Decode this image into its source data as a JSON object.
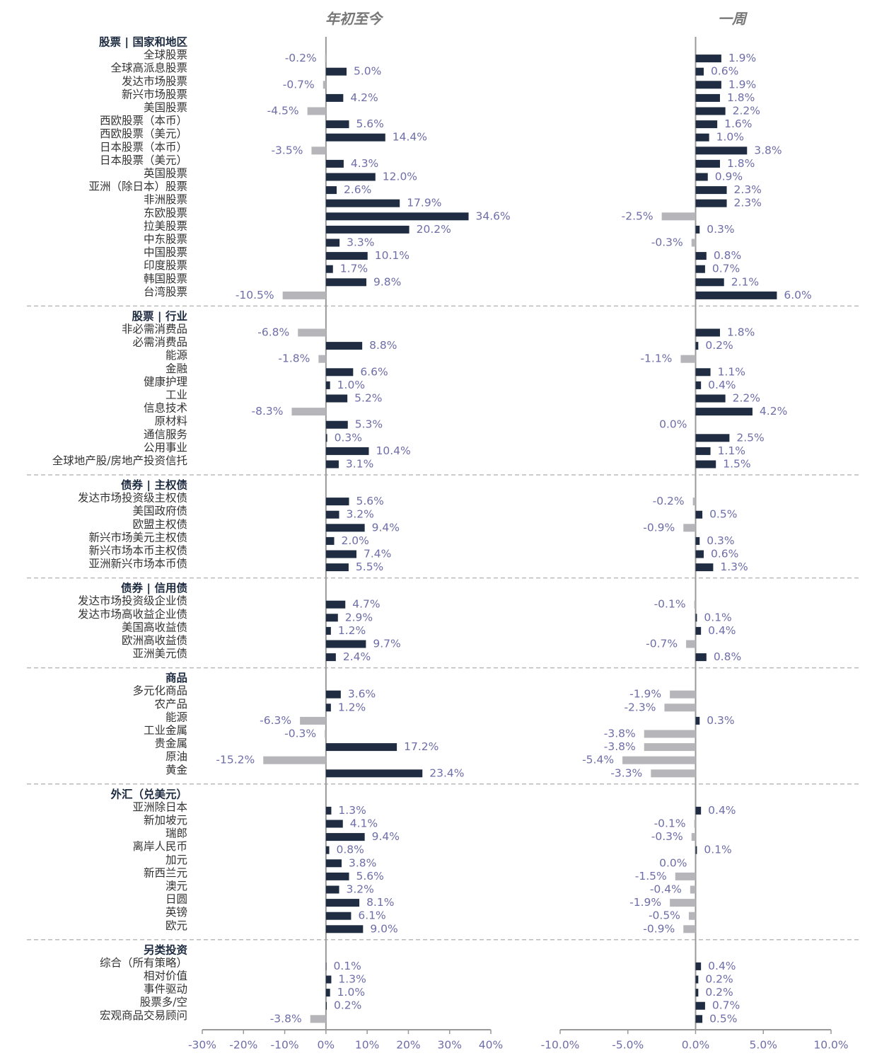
{
  "chart_data": {
    "type": "bar",
    "panels": [
      {
        "title": "年初至今",
        "xlim": [
          -30,
          40
        ],
        "xticks": [
          {
            "value": -30,
            "label": "-30%"
          },
          {
            "value": -20,
            "label": "-20%"
          },
          {
            "value": -10,
            "label": "-10%"
          },
          {
            "value": 0,
            "label": "0%"
          },
          {
            "value": 10,
            "label": "10%"
          },
          {
            "value": 20,
            "label": "20%"
          },
          {
            "value": 30,
            "label": "30%"
          },
          {
            "value": 40,
            "label": "40%"
          }
        ]
      },
      {
        "title": "一周",
        "xlim": [
          -10,
          10
        ],
        "xticks": [
          {
            "value": -10,
            "label": "-10.0%"
          },
          {
            "value": -5,
            "label": "-5.0%"
          },
          {
            "value": 0,
            "label": "0.0%"
          },
          {
            "value": 5,
            "label": "5.0%"
          },
          {
            "value": 10,
            "label": "10.0%"
          }
        ]
      }
    ],
    "colors": {
      "positive": "#1f2c42",
      "negative": "#b5b5ba"
    },
    "groups": [
      {
        "name": "股票 | 国家和地区",
        "categories": [
          "全球股票",
          "全球高派息股票",
          "发达市场股票",
          "新兴市场股票",
          "美国股票",
          "西欧股票（本币）",
          "西欧股票（美元）",
          "日本股票（本币）",
          "日本股票（美元）",
          "英国股票",
          "亚洲（除日本）股票",
          "非洲股票",
          "东欧股票",
          "拉美股票",
          "中东股票",
          "中国股票",
          "印度股票",
          "韩国股票",
          "台湾股票"
        ],
        "series": [
          {
            "values": [
              -0.2,
              5.0,
              -0.7,
              4.2,
              -4.5,
              5.6,
              14.4,
              -3.5,
              4.3,
              12.0,
              2.6,
              17.9,
              34.6,
              20.2,
              3.3,
              10.1,
              1.7,
              9.8,
              -10.5
            ],
            "value_labels": [
              "-0.2%",
              "5.0%",
              "-0.7%",
              "4.2%",
              "-4.5%",
              "5.6%",
              "14.4%",
              "-3.5%",
              "4.3%",
              "12.0%",
              "2.6%",
              "17.9%",
              "34.6%",
              "20.2%",
              "3.3%",
              "10.1%",
              "1.7%",
              "9.8%",
              "-10.5%"
            ]
          },
          {
            "values": [
              1.9,
              0.6,
              1.9,
              1.8,
              2.2,
              1.6,
              1.0,
              3.8,
              1.8,
              0.9,
              2.3,
              2.3,
              -2.5,
              0.3,
              -0.3,
              0.8,
              0.7,
              2.1,
              6.0
            ],
            "value_labels": [
              "1.9%",
              "0.6%",
              "1.9%",
              "1.8%",
              "2.2%",
              "1.6%",
              "1.0%",
              "3.8%",
              "1.8%",
              "0.9%",
              "2.3%",
              "2.3%",
              "-2.5%",
              "0.3%",
              "-0.3%",
              "0.8%",
              "0.7%",
              "2.1%",
              "6.0%"
            ]
          }
        ]
      },
      {
        "name": "股票 | 行业",
        "categories": [
          "非必需消费品",
          "必需消费品",
          "能源",
          "金融",
          "健康护理",
          "工业",
          "信息技术",
          "原材料",
          "通信服务",
          "公用事业",
          "全球地产股/房地产投资信托"
        ],
        "series": [
          {
            "values": [
              -6.8,
              8.8,
              -1.8,
              6.6,
              1.0,
              5.2,
              -8.3,
              5.3,
              0.3,
              10.4,
              3.1
            ],
            "value_labels": [
              "-6.8%",
              "8.8%",
              "-1.8%",
              "6.6%",
              "1.0%",
              "5.2%",
              "-8.3%",
              "5.3%",
              "0.3%",
              "10.4%",
              "3.1%"
            ]
          },
          {
            "values": [
              1.8,
              0.2,
              -1.1,
              1.1,
              0.4,
              2.2,
              4.2,
              0.0,
              2.5,
              1.1,
              1.5
            ],
            "value_labels": [
              "1.8%",
              "0.2%",
              "-1.1%",
              "1.1%",
              "0.4%",
              "2.2%",
              "4.2%",
              "0.0%",
              "2.5%",
              "1.1%",
              "1.5%"
            ]
          }
        ]
      },
      {
        "name": "债券 | 主权债",
        "categories": [
          "发达市场投资级主权债",
          "美国政府债",
          "欧盟主权债",
          "新兴市场美元主权债",
          "新兴市场本币主权债",
          "亚洲新兴市场本币债"
        ],
        "series": [
          {
            "values": [
              5.6,
              3.2,
              9.4,
              2.0,
              7.4,
              5.5
            ],
            "value_labels": [
              "5.6%",
              "3.2%",
              "9.4%",
              "2.0%",
              "7.4%",
              "5.5%"
            ]
          },
          {
            "values": [
              -0.2,
              0.5,
              -0.9,
              0.3,
              0.6,
              1.3
            ],
            "value_labels": [
              "-0.2%",
              "0.5%",
              "-0.9%",
              "0.3%",
              "0.6%",
              "1.3%"
            ]
          }
        ]
      },
      {
        "name": "债券 | 信用债",
        "categories": [
          "发达市场投资级企业债",
          "发达市场高收益企业债",
          "美国高收益债",
          "欧洲高收益债",
          "亚洲美元债"
        ],
        "series": [
          {
            "values": [
              4.7,
              2.9,
              1.2,
              9.7,
              2.4
            ],
            "value_labels": [
              "4.7%",
              "2.9%",
              "1.2%",
              "9.7%",
              "2.4%"
            ]
          },
          {
            "values": [
              -0.1,
              0.1,
              0.4,
              -0.7,
              0.8
            ],
            "value_labels": [
              "-0.1%",
              "0.1%",
              "0.4%",
              "-0.7%",
              "0.8%"
            ]
          }
        ]
      },
      {
        "name": "商品",
        "categories": [
          "多元化商品",
          "农产品",
          "能源",
          "工业金属",
          "贵金属",
          "原油",
          "黄金"
        ],
        "series": [
          {
            "values": [
              3.6,
              1.2,
              -6.3,
              -0.3,
              17.2,
              -15.2,
              23.4
            ],
            "value_labels": [
              "3.6%",
              "1.2%",
              "-6.3%",
              "-0.3%",
              "17.2%",
              "-15.2%",
              "23.4%"
            ]
          },
          {
            "values": [
              -1.9,
              -2.3,
              0.3,
              -3.8,
              -3.8,
              -5.4,
              -3.3
            ],
            "value_labels": [
              "-1.9%",
              "-2.3%",
              "0.3%",
              "-3.8%",
              "-3.8%",
              "-5.4%",
              "-3.3%"
            ]
          }
        ]
      },
      {
        "name": "外汇（兑美元）",
        "categories": [
          "亚洲除日本",
          "新加坡元",
          "瑞郎",
          "离岸人民币",
          "加元",
          "新西兰元",
          "澳元",
          "日圆",
          "英镑",
          "欧元"
        ],
        "series": [
          {
            "values": [
              1.3,
              4.1,
              9.4,
              0.8,
              3.8,
              5.6,
              3.2,
              8.1,
              6.1,
              9.0
            ],
            "value_labels": [
              "1.3%",
              "4.1%",
              "9.4%",
              "0.8%",
              "3.8%",
              "5.6%",
              "3.2%",
              "8.1%",
              "6.1%",
              "9.0%"
            ]
          },
          {
            "values": [
              0.4,
              -0.1,
              -0.3,
              0.1,
              0.0,
              -1.5,
              -0.4,
              -1.9,
              -0.5,
              -0.9
            ],
            "value_labels": [
              "0.4%",
              "-0.1%",
              "-0.3%",
              "0.1%",
              "0.0%",
              "-1.5%",
              "-0.4%",
              "-1.9%",
              "-0.5%",
              "-0.9%"
            ]
          }
        ]
      },
      {
        "name": "另类投资",
        "categories": [
          "综合（所有策略）",
          "相对价值",
          "事件驱动",
          "股票多/空",
          "宏观商品交易顾问"
        ],
        "series": [
          {
            "values": [
              0.1,
              1.3,
              1.0,
              0.2,
              -3.8
            ],
            "value_labels": [
              "0.1%",
              "1.3%",
              "1.0%",
              "0.2%",
              "-3.8%"
            ]
          },
          {
            "values": [
              0.4,
              0.2,
              0.2,
              0.7,
              0.5
            ],
            "value_labels": [
              "0.4%",
              "0.2%",
              "0.2%",
              "0.7%",
              "0.5%"
            ]
          }
        ]
      }
    ]
  }
}
